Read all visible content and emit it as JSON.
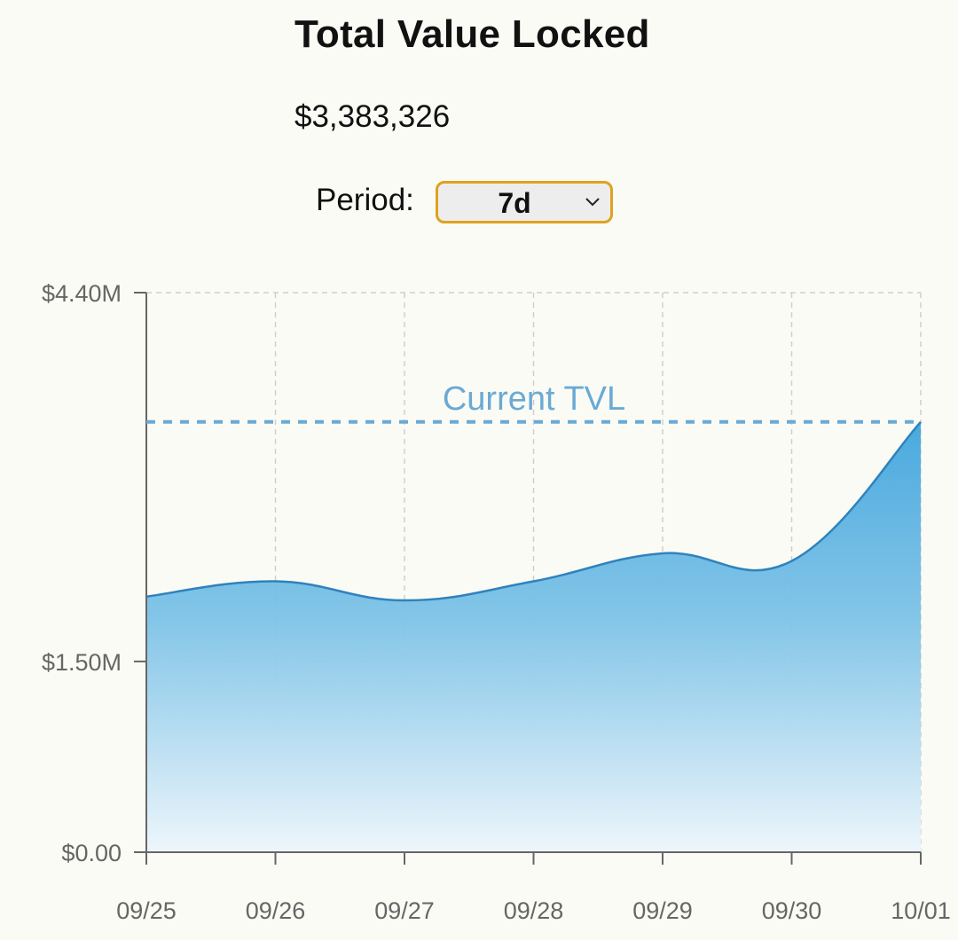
{
  "header": {
    "title": "Total Value Locked",
    "value": "$3,383,326"
  },
  "period": {
    "label": "Period:",
    "selected": "7d"
  },
  "colors": {
    "accent": "#e0a11e",
    "line": "#2f82bd",
    "fill_top": "#4aa9de",
    "fill_bottom": "#eef6fb",
    "reference": "#6aaad4"
  },
  "chart_data": {
    "type": "area",
    "x": [
      "09/25",
      "09/26",
      "09/27",
      "09/28",
      "09/29",
      "09/30",
      "10/01"
    ],
    "values": [
      2010000,
      2130000,
      1980000,
      2130000,
      2350000,
      2290000,
      3383326
    ],
    "ylim": [
      0,
      4400000
    ],
    "y_ticks": [
      {
        "value": 0,
        "label": "$0.00"
      },
      {
        "value": 1500000,
        "label": "$1.50M"
      },
      {
        "value": 4400000,
        "label": "$4.40M"
      }
    ],
    "reference_line": {
      "value": 3383326,
      "label": "Current TVL"
    },
    "grid": true
  }
}
